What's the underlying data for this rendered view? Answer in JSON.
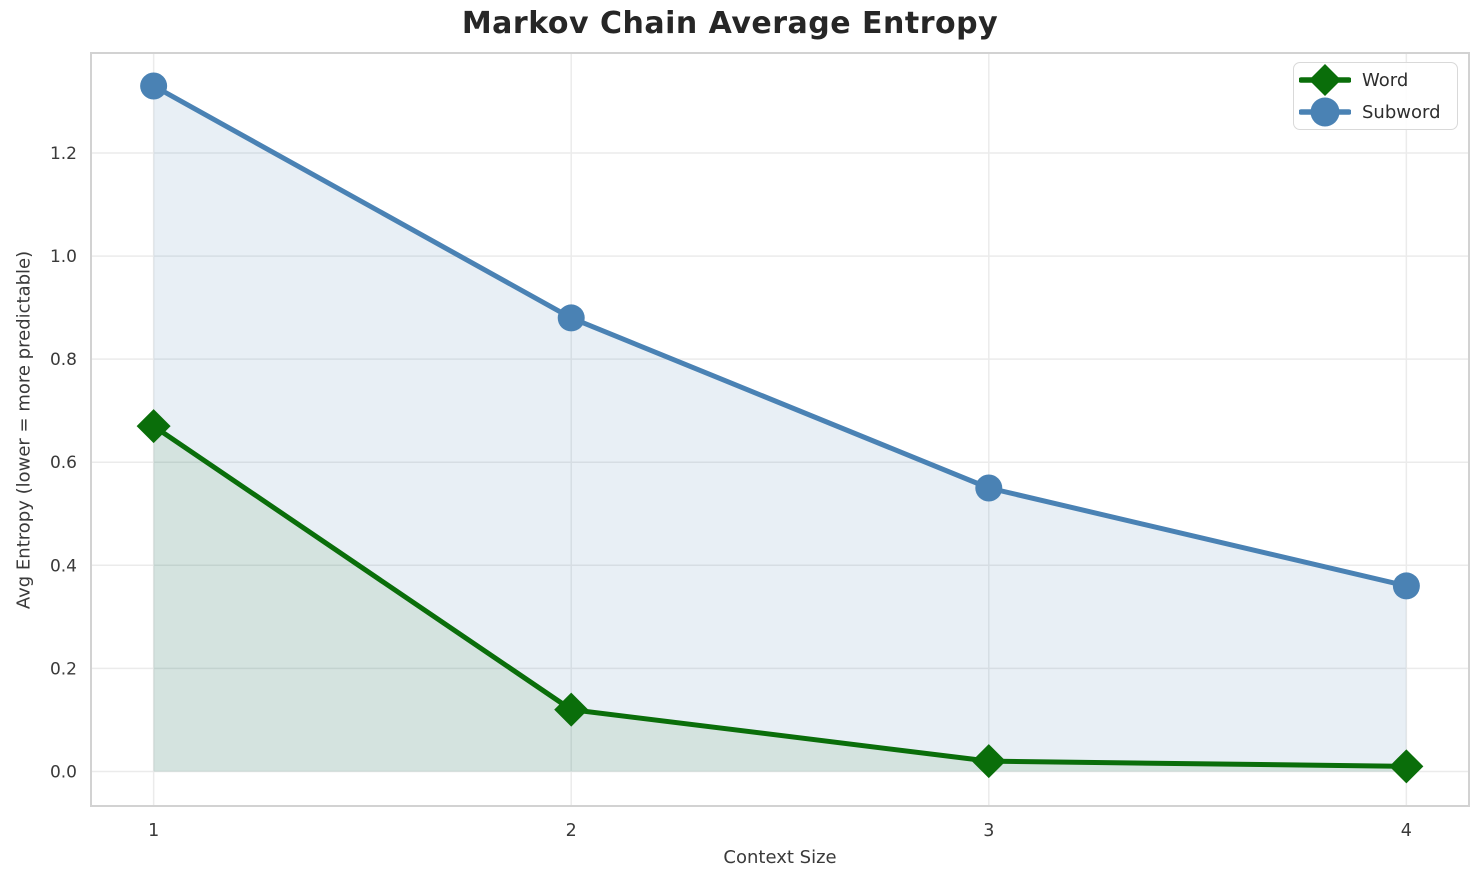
{
  "chart_data": {
    "type": "line",
    "title": "Markov Chain Average Entropy",
    "xlabel": "Context Size",
    "ylabel": "Avg Entropy (lower = more predictable)",
    "x": [
      1,
      2,
      3,
      4
    ],
    "series": [
      {
        "name": "Word",
        "marker": "diamond",
        "color": "#0a6e0a",
        "fill_alpha": 0.09,
        "values": [
          0.67,
          0.12,
          0.02,
          0.01
        ]
      },
      {
        "name": "Subword",
        "marker": "circle",
        "color": "#4a82b4",
        "fill_alpha": 0.13,
        "values": [
          1.33,
          0.88,
          0.55,
          0.36
        ]
      }
    ],
    "xtick_labels": [
      "1",
      "2",
      "3",
      "4"
    ],
    "yticks": [
      0.0,
      0.2,
      0.4,
      0.6,
      0.8,
      1.0,
      1.2
    ],
    "ytick_labels": [
      "0.0",
      "0.2",
      "0.4",
      "0.6",
      "0.8",
      "1.0",
      "1.2"
    ],
    "xlim": [
      0.85,
      4.15
    ],
    "ylim": [
      -0.067,
      1.394
    ],
    "grid": true,
    "fill": "to-zero",
    "legend_position": "upper right",
    "colors": {
      "grid": "#ebebeb",
      "spine": "#d2d2d2",
      "tick_text": "#3a3a3a",
      "title_text": "#262626"
    }
  }
}
